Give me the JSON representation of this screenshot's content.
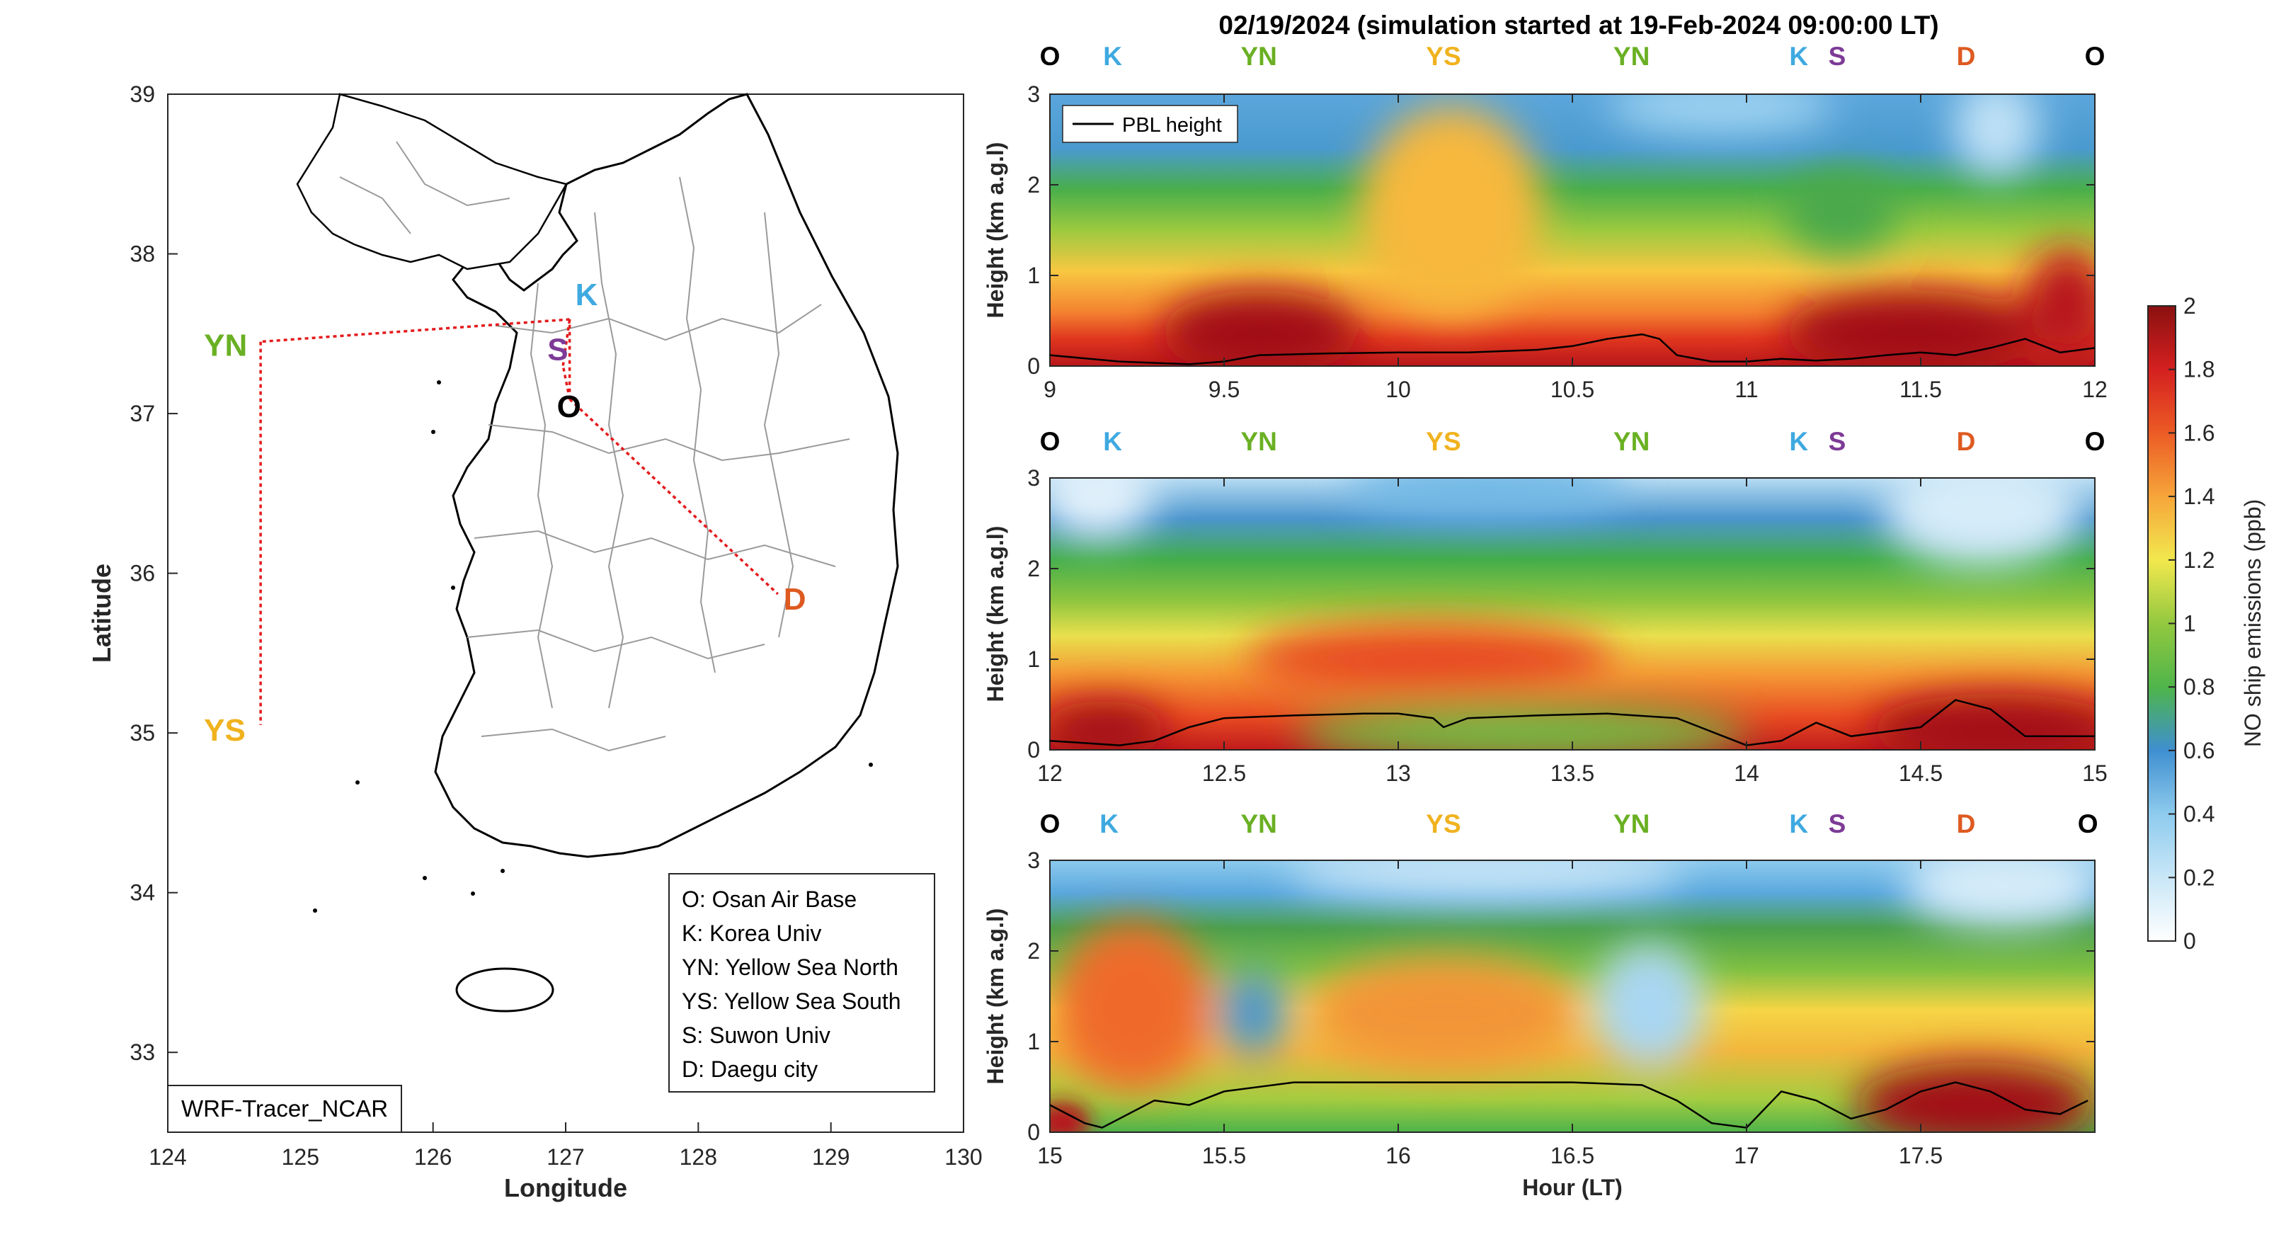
{
  "title": "02/19/2024 (simulation started at 19-Feb-2024 09:00:00 LT)",
  "colors": {
    "O": "#000000",
    "K": "#3fa9e0",
    "YN": "#6ab023",
    "YS": "#f0b21e",
    "S": "#7d3b96",
    "D": "#de5a21",
    "route": "#e41a1c"
  },
  "map": {
    "xlabel": "Longitude",
    "ylabel": "Latitude",
    "xticks": [
      "124",
      "125",
      "126",
      "127",
      "128",
      "129",
      "130"
    ],
    "yticks": [
      "39",
      "38",
      "37",
      "36",
      "35",
      "34",
      "33"
    ],
    "model_label": "WRF-Tracer_NCAR",
    "legend": [
      "O: Osan Air Base",
      "K: Korea Univ",
      "YN: Yellow Sea North",
      "YS: Yellow Sea South",
      "S: Suwon Univ",
      "D: Daegu city"
    ],
    "sites": [
      {
        "id": "O",
        "lon": 127.03,
        "lat": 37.09
      },
      {
        "id": "K",
        "lon": 127.03,
        "lat": 37.59
      },
      {
        "id": "YN",
        "lon": 124.7,
        "lat": 37.45
      },
      {
        "id": "YS",
        "lon": 124.7,
        "lat": 35.05
      },
      {
        "id": "S",
        "lon": 126.98,
        "lat": 37.3
      },
      {
        "id": "D",
        "lon": 128.6,
        "lat": 35.87
      }
    ]
  },
  "chart_data": [
    {
      "type": "heatmap",
      "panel": 1,
      "xlim": [
        9,
        12
      ],
      "ylim": [
        0,
        3
      ],
      "xticks": [
        "9",
        "9.5",
        "10",
        "10.5",
        "11",
        "11.5",
        "12"
      ],
      "yticks": [
        "0",
        "1",
        "2",
        "3"
      ],
      "ylabel": "Height (km a.g.l)",
      "legend": "PBL height",
      "site_markers": [
        {
          "label": "O",
          "x": 9.0
        },
        {
          "label": "K",
          "x": 9.18
        },
        {
          "label": "YN",
          "x": 9.6
        },
        {
          "label": "YS",
          "x": 10.13
        },
        {
          "label": "YN",
          "x": 10.67
        },
        {
          "label": "K",
          "x": 11.15
        },
        {
          "label": "S",
          "x": 11.26
        },
        {
          "label": "D",
          "x": 11.63
        },
        {
          "label": "O",
          "x": 12.0
        }
      ],
      "pbl_height": {
        "x": [
          9.0,
          9.2,
          9.4,
          9.5,
          9.6,
          9.8,
          10.0,
          10.2,
          10.4,
          10.5,
          10.6,
          10.7,
          10.75,
          10.8,
          10.9,
          11.0,
          11.1,
          11.2,
          11.3,
          11.4,
          11.5,
          11.6,
          11.7,
          11.8,
          11.9,
          12.0
        ],
        "y": [
          0.12,
          0.05,
          0.02,
          0.05,
          0.12,
          0.14,
          0.15,
          0.15,
          0.18,
          0.22,
          0.3,
          0.35,
          0.3,
          0.12,
          0.05,
          0.05,
          0.08,
          0.06,
          0.08,
          0.12,
          0.15,
          0.12,
          0.2,
          0.3,
          0.15,
          0.2
        ]
      }
    },
    {
      "type": "heatmap",
      "panel": 2,
      "xlim": [
        12,
        15
      ],
      "ylim": [
        0,
        3
      ],
      "xticks": [
        "12",
        "12.5",
        "13",
        "13.5",
        "14",
        "14.5",
        "15"
      ],
      "yticks": [
        "0",
        "1",
        "2",
        "3"
      ],
      "ylabel": "Height (km a.g.l)",
      "site_markers": [
        {
          "label": "O",
          "x": 12.0
        },
        {
          "label": "K",
          "x": 12.18
        },
        {
          "label": "YN",
          "x": 12.6
        },
        {
          "label": "YS",
          "x": 13.13
        },
        {
          "label": "YN",
          "x": 13.67
        },
        {
          "label": "K",
          "x": 14.15
        },
        {
          "label": "S",
          "x": 14.26
        },
        {
          "label": "D",
          "x": 14.63
        },
        {
          "label": "O",
          "x": 15.0
        }
      ],
      "pbl_height": {
        "x": [
          12.0,
          12.2,
          12.3,
          12.4,
          12.5,
          12.7,
          12.9,
          13.0,
          13.1,
          13.13,
          13.2,
          13.4,
          13.6,
          13.8,
          13.9,
          14.0,
          14.1,
          14.2,
          14.3,
          14.5,
          14.6,
          14.7,
          14.8,
          15.0
        ],
        "y": [
          0.1,
          0.05,
          0.1,
          0.25,
          0.35,
          0.38,
          0.4,
          0.4,
          0.35,
          0.25,
          0.35,
          0.38,
          0.4,
          0.35,
          0.2,
          0.05,
          0.1,
          0.3,
          0.15,
          0.25,
          0.55,
          0.45,
          0.15,
          0.15
        ]
      }
    },
    {
      "type": "heatmap",
      "panel": 3,
      "xlim": [
        15,
        18
      ],
      "ylim": [
        0,
        3
      ],
      "xticks": [
        "15",
        "15.5",
        "16",
        "16.5",
        "17",
        "17.5"
      ],
      "yticks": [
        "0",
        "1",
        "2",
        "3"
      ],
      "ylabel": "Height (km a.g.l)",
      "xlabel": "Hour (LT)",
      "site_markers": [
        {
          "label": "O",
          "x": 15.0
        },
        {
          "label": "K",
          "x": 15.17
        },
        {
          "label": "YN",
          "x": 15.6
        },
        {
          "label": "YS",
          "x": 16.13
        },
        {
          "label": "YN",
          "x": 16.67
        },
        {
          "label": "K",
          "x": 17.15
        },
        {
          "label": "S",
          "x": 17.26
        },
        {
          "label": "D",
          "x": 17.63
        },
        {
          "label": "O",
          "x": 17.98
        }
      ],
      "pbl_height": {
        "x": [
          15.0,
          15.1,
          15.15,
          15.3,
          15.4,
          15.5,
          15.7,
          15.9,
          16.1,
          16.3,
          16.5,
          16.7,
          16.8,
          16.9,
          17.0,
          17.1,
          17.2,
          17.3,
          17.4,
          17.5,
          17.6,
          17.7,
          17.8,
          17.9,
          17.98
        ],
        "y": [
          0.3,
          0.1,
          0.05,
          0.35,
          0.3,
          0.45,
          0.55,
          0.55,
          0.55,
          0.55,
          0.55,
          0.52,
          0.35,
          0.1,
          0.05,
          0.45,
          0.35,
          0.15,
          0.25,
          0.45,
          0.55,
          0.45,
          0.25,
          0.2,
          0.35
        ]
      }
    }
  ],
  "colorbar": {
    "label": "NO ship emissions (ppb)",
    "ticks": [
      "0",
      "0.2",
      "0.4",
      "0.6",
      "0.8",
      "1",
      "1.2",
      "1.4",
      "1.6",
      "1.8",
      "2"
    ],
    "range": [
      0,
      2
    ]
  }
}
